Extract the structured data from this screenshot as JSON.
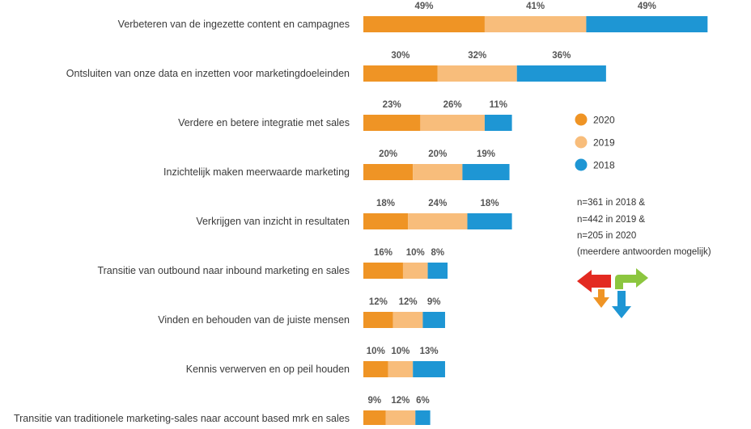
{
  "chart_data": {
    "type": "bar",
    "orientation": "horizontal-stacked",
    "categories": [
      "Verbeteren van de ingezette content en campagnes",
      "Ontsluiten van onze data en inzetten voor marketingdoeleinden",
      "Verdere en betere integratie met sales",
      "Inzichtelijk maken meerwaarde marketing",
      "Verkrijgen van inzicht in resultaten",
      "Transitie van outbound naar inbound marketing en sales",
      "Vinden en behouden van de juiste mensen",
      "Kennis verwerven en op peil houden",
      "Transitie van traditionele marketing-sales naar account based mrk en sales"
    ],
    "series": [
      {
        "name": "2020",
        "color": "#ef9425",
        "values": [
          49,
          30,
          23,
          20,
          18,
          16,
          12,
          10,
          9
        ]
      },
      {
        "name": "2019",
        "color": "#f8bd7b",
        "values": [
          41,
          32,
          26,
          20,
          24,
          10,
          12,
          10,
          12
        ]
      },
      {
        "name": "2018",
        "color": "#1e96d4",
        "values": [
          49,
          36,
          11,
          19,
          18,
          8,
          9,
          13,
          6
        ]
      }
    ],
    "value_suffix": "%",
    "legend_position": "right",
    "grid": false
  },
  "note": {
    "lines": [
      "n=361 in 2018 &",
      "n=442 in 2019 &",
      "n=205 in 2020",
      "(meerdere antwoorden mogelijk)"
    ]
  },
  "logo": {
    "icon": "four-arrows-icon",
    "colors": [
      "#e32a21",
      "#8cc63f",
      "#ef9425",
      "#1e96d4"
    ]
  }
}
